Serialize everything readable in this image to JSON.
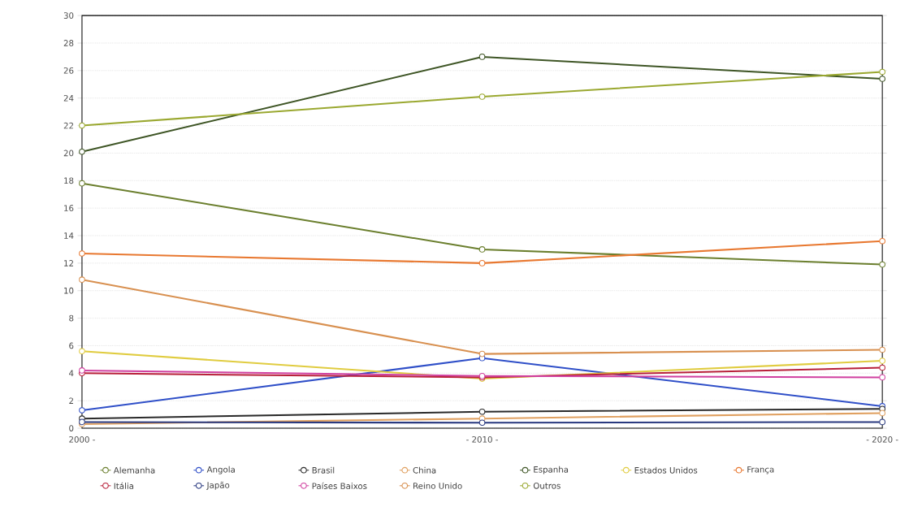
{
  "chart_data": {
    "type": "line",
    "categories": [
      "2000 -",
      "- 2010 -",
      "- 2020 -"
    ],
    "ylim": [
      0,
      30
    ],
    "yticks": [
      0,
      2,
      4,
      6,
      8,
      10,
      12,
      14,
      16,
      18,
      20,
      22,
      24,
      26,
      28,
      30
    ],
    "grid": "y",
    "legend": "bottom",
    "marker": "circle",
    "line_style": "solid",
    "series": [
      {
        "name": "Alemanha",
        "color": "#6b7f2e",
        "values": [
          17.8,
          13.0,
          11.9
        ]
      },
      {
        "name": "Angola",
        "color": "#2f4fc8",
        "values": [
          1.3,
          5.1,
          1.6
        ]
      },
      {
        "name": "Brasil",
        "color": "#2a2a2a",
        "values": [
          0.7,
          1.2,
          1.4
        ]
      },
      {
        "name": "China",
        "color": "#e0a060",
        "values": [
          0.3,
          0.7,
          1.1
        ]
      },
      {
        "name": "Espanha",
        "color": "#3e5525",
        "values": [
          20.1,
          27.0,
          25.4
        ]
      },
      {
        "name": "Estados Unidos",
        "color": "#e0cc40",
        "values": [
          5.6,
          3.6,
          4.9
        ]
      },
      {
        "name": "França",
        "color": "#e87830",
        "values": [
          12.7,
          12.0,
          13.6
        ]
      },
      {
        "name": "Itália",
        "color": "#b8203a",
        "values": [
          4.0,
          3.7,
          4.4
        ]
      },
      {
        "name": "Japão",
        "color": "#2a3a80",
        "values": [
          0.45,
          0.4,
          0.45
        ]
      },
      {
        "name": "Países Baixos",
        "color": "#d040a0",
        "values": [
          4.2,
          3.8,
          3.7
        ]
      },
      {
        "name": "Reino Unido",
        "color": "#d89050",
        "values": [
          10.8,
          5.4,
          5.7
        ]
      },
      {
        "name": "Outros",
        "color": "#9aa830",
        "values": [
          22.0,
          24.1,
          25.9
        ]
      }
    ]
  }
}
